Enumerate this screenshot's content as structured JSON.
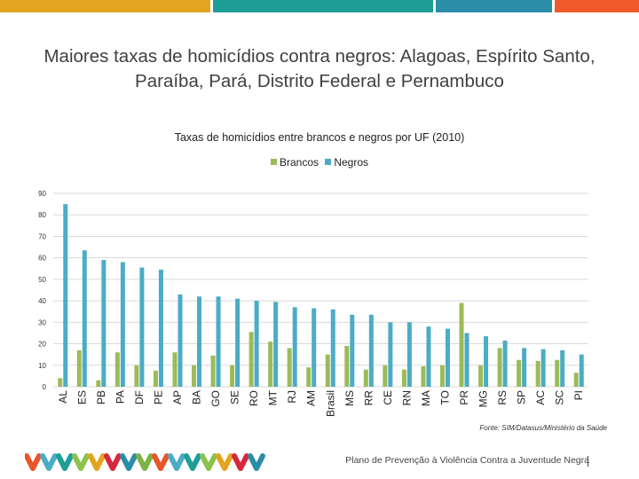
{
  "top_bar_colors": [
    "#e3a41f",
    "#1e9e97",
    "#2b8da8",
    "#f05a2a"
  ],
  "title": "Maiores taxas de  homicídios contra negros: Alagoas, Espírito Santo, Paraíba, Pará, Distrito Federal e Pernambuco",
  "chart_data": {
    "type": "bar",
    "title": "Taxas de homicídios entre brancos e negros por UF (2010)",
    "categories": [
      "AL",
      "ES",
      "PB",
      "PA",
      "DF",
      "PE",
      "AP",
      "BA",
      "GO",
      "SE",
      "RO",
      "MT",
      "RJ",
      "AM",
      "Brasil",
      "MS",
      "RR",
      "CE",
      "RN",
      "MA",
      "TO",
      "PR",
      "MG",
      "RS",
      "SP",
      "AC",
      "SC",
      "PI"
    ],
    "series": [
      {
        "name": "Brancos",
        "color": "#9bbb59",
        "values": [
          4,
          17,
          3,
          16,
          10,
          7.5,
          16,
          10,
          14.5,
          10,
          25.5,
          21,
          18,
          9,
          15,
          19,
          8,
          10,
          8,
          9.5,
          10,
          39,
          10,
          18,
          12.5,
          12,
          12.5,
          6.5
        ]
      },
      {
        "name": "Negros",
        "color": "#4bacc6",
        "values": [
          85,
          63.5,
          59,
          58,
          55.5,
          54.5,
          43,
          42,
          42,
          41,
          40,
          39.5,
          37,
          36.5,
          36,
          33.5,
          33.5,
          30,
          30,
          28,
          27,
          25,
          23.5,
          21.5,
          18,
          17.5,
          17,
          15
        ]
      }
    ],
    "yticks": [
      0,
      10,
      20,
      30,
      40,
      50,
      60,
      70,
      80,
      90
    ],
    "ylim": [
      0,
      90
    ],
    "xlabel": "",
    "ylabel": "",
    "legend_position": "top-center",
    "grid": true
  },
  "source": "Fonte: SIM/Datasus/Ministério da Saúde",
  "footer": {
    "plan_text": "Plano de Prevenção à Violência Contra a Juventude Negra",
    "logo_colors": [
      "#e8562a",
      "#4bacc6",
      "#1e9e97",
      "#8bc34a",
      "#e3a41f",
      "#d7263d",
      "#2b8da8",
      "#7cb342"
    ]
  }
}
